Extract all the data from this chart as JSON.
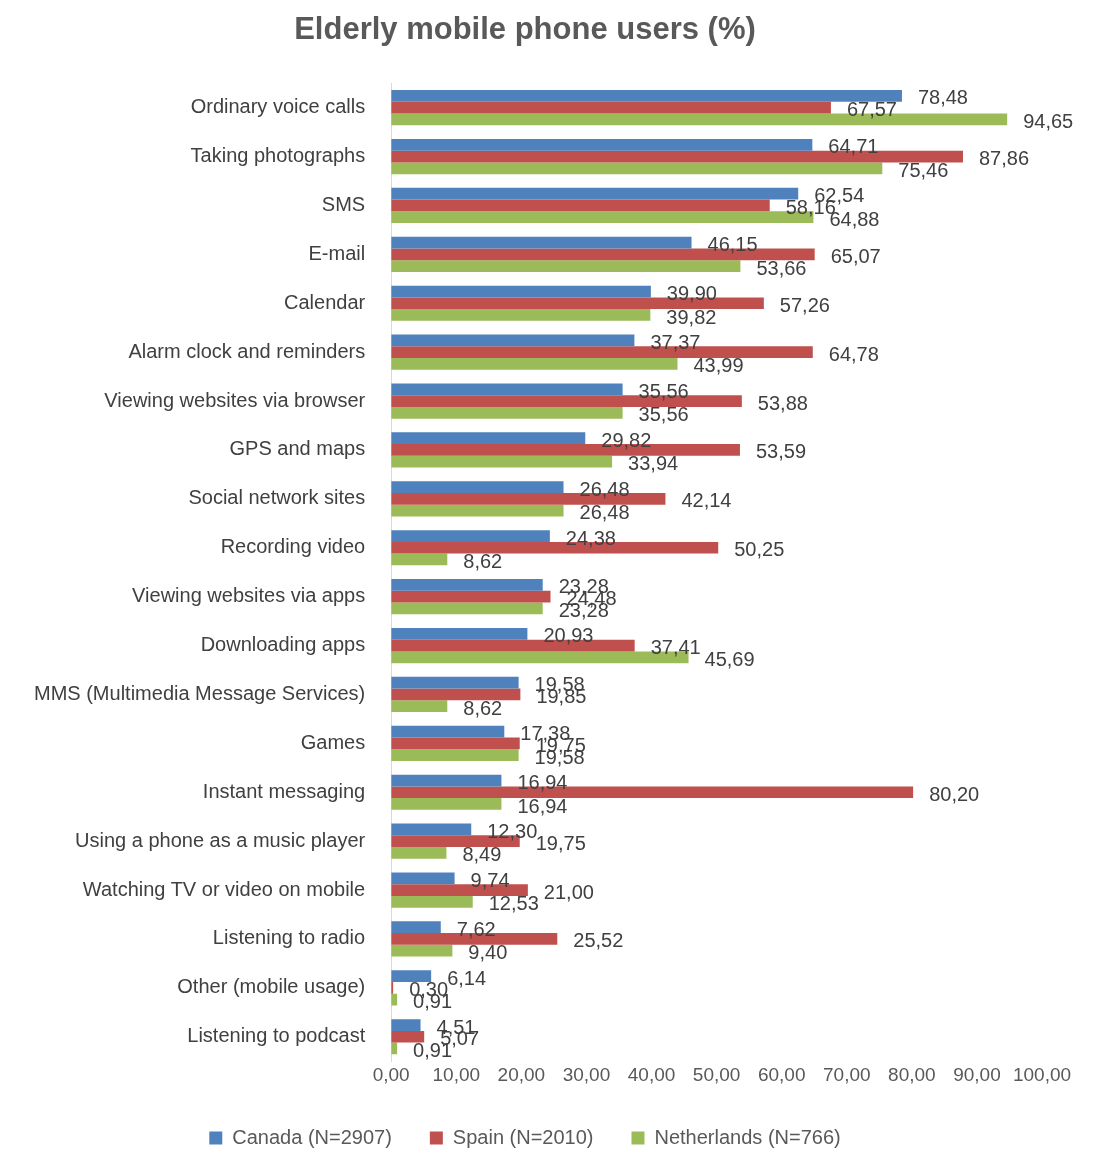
{
  "chart_data": {
    "type": "bar",
    "orientation": "horizontal",
    "title": "Elderly mobile phone users (%)",
    "categories": [
      "Ordinary voice calls",
      "Taking photographs",
      "SMS",
      "E-mail",
      "Calendar",
      "Alarm clock and reminders",
      "Viewing websites via browser",
      "GPS and maps",
      "Social network sites",
      "Recording video",
      "Viewing websites via apps",
      "Downloading apps",
      "MMS (Multimedia Message Services)",
      "Games",
      "Instant messaging",
      "Using a phone as a music player",
      "Watching TV or video on mobile",
      "Listening to radio",
      "Other (mobile usage)",
      "Listening to podcast"
    ],
    "series": [
      {
        "name": "Canada (N=2907)",
        "color": "#4f81bd",
        "values": [
          78.48,
          64.71,
          62.54,
          46.15,
          39.9,
          37.37,
          35.56,
          29.82,
          26.48,
          24.38,
          23.28,
          20.93,
          19.58,
          17.38,
          16.94,
          12.3,
          9.74,
          7.62,
          6.14,
          4.51
        ],
        "value_labels": [
          "78,48",
          "64,71",
          "62,54",
          "46,15",
          "39,90",
          "37,37",
          "35,56",
          "29,82",
          "26,48",
          "24,38",
          "23,28",
          "20,93",
          "19,58",
          "17,38",
          "16,94",
          "12,30",
          "9,74",
          "7,62",
          "6,14",
          "4,51"
        ]
      },
      {
        "name": "Spain (N=2010)",
        "color": "#c0504d",
        "values": [
          67.57,
          87.86,
          58.16,
          65.07,
          57.26,
          64.78,
          53.88,
          53.59,
          42.14,
          50.25,
          24.48,
          37.41,
          19.85,
          19.75,
          80.2,
          19.75,
          21.0,
          25.52,
          0.3,
          5.07
        ],
        "value_labels": [
          "67,57",
          "87,86",
          "58,16",
          "65,07",
          "57,26",
          "64,78",
          "53,88",
          "53,59",
          "42,14",
          "50,25",
          "24,48",
          "37,41",
          "19,85",
          "19,75",
          "80,20",
          "19,75",
          "21,00",
          "25,52",
          "0,30",
          "5,07"
        ]
      },
      {
        "name": "Netherlands (N=766)",
        "color": "#9bbb59",
        "values": [
          94.65,
          75.46,
          64.88,
          53.66,
          39.82,
          43.99,
          35.56,
          33.94,
          26.48,
          8.62,
          23.28,
          45.69,
          8.62,
          19.58,
          16.94,
          8.49,
          12.53,
          9.4,
          0.91,
          0.91
        ],
        "value_labels": [
          "94,65",
          "75,46",
          "64,88",
          "53,66",
          "39,82",
          "43,99",
          "35,56",
          "33,94",
          "26,48",
          "8,62",
          "23,28",
          "45,69",
          "8,62",
          "19,58",
          "16,94",
          "8,49",
          "12,53",
          "9,40",
          "0,91",
          "0,91"
        ]
      }
    ],
    "xlim": [
      0,
      100
    ],
    "xticks": [
      {
        "value": 0,
        "label": "0,00"
      },
      {
        "value": 10,
        "label": "10,00"
      },
      {
        "value": 20,
        "label": "20,00"
      },
      {
        "value": 30,
        "label": "30,00"
      },
      {
        "value": 40,
        "label": "40,00"
      },
      {
        "value": 50,
        "label": "50,00"
      },
      {
        "value": 60,
        "label": "60,00"
      },
      {
        "value": 70,
        "label": "70,00"
      },
      {
        "value": 80,
        "label": "80,00"
      },
      {
        "value": 90,
        "label": "90,00"
      },
      {
        "value": 100,
        "label": "100,00"
      }
    ],
    "grid": false,
    "legend": "bottom"
  }
}
